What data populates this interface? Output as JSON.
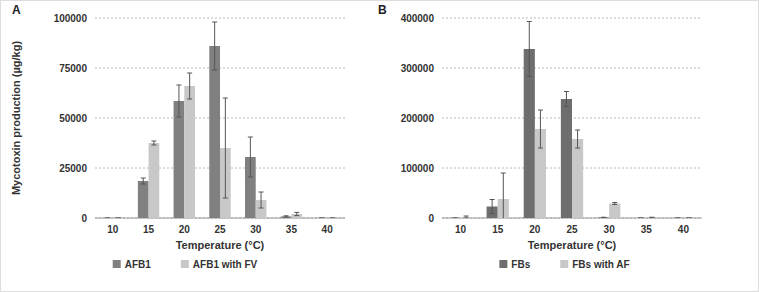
{
  "chart_data": [
    {
      "type": "bar",
      "title": "A",
      "x_label": "Temperature (°C)",
      "y_label": "Mycotoxin production (µg/kg)",
      "categories": [
        "10",
        "15",
        "20",
        "25",
        "30",
        "35",
        "40"
      ],
      "series": [
        {
          "name": "AFB1",
          "color": "#808080",
          "values": [
            0,
            18500,
            58500,
            86000,
            30500,
            800,
            0
          ],
          "errors": [
            0,
            1500,
            8000,
            12000,
            10000,
            300,
            0
          ]
        },
        {
          "name": "AFB1 with FV",
          "color": "#c8c8c8",
          "values": [
            0,
            37500,
            66000,
            35000,
            9000,
            2000,
            0
          ],
          "errors": [
            0,
            1000,
            6500,
            25000,
            4000,
            800,
            0
          ]
        }
      ],
      "ylim": [
        0,
        100000
      ],
      "yticks": [
        0,
        25000,
        50000,
        75000,
        100000
      ],
      "grid": true,
      "legend": "bottom"
    },
    {
      "type": "bar",
      "title": "B",
      "x_label": "Temperature (°C)",
      "categories": [
        "10",
        "15",
        "20",
        "25",
        "30",
        "35",
        "40"
      ],
      "series": [
        {
          "name": "FBs",
          "color": "#6e6e6e",
          "values": [
            0,
            23000,
            338000,
            238000,
            1000,
            0,
            0
          ],
          "errors": [
            0,
            14000,
            55000,
            15000,
            500,
            0,
            0
          ]
        },
        {
          "name": "FBs with AF",
          "color": "#c8c8c8",
          "values": [
            2000,
            38000,
            178000,
            158000,
            29000,
            1000,
            0
          ],
          "errors": [
            2000,
            52000,
            38000,
            18000,
            2000,
            500,
            0
          ]
        }
      ],
      "ylim": [
        0,
        400000
      ],
      "yticks": [
        0,
        100000,
        200000,
        300000,
        400000
      ],
      "grid": true,
      "legend": "bottom"
    }
  ]
}
